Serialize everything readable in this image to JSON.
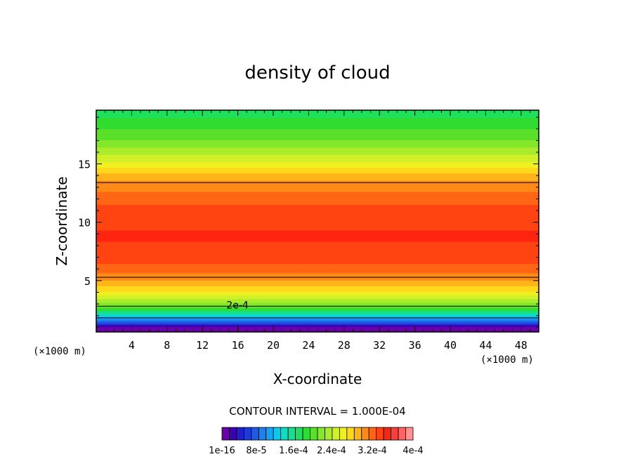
{
  "chart_data": {
    "type": "heatmap",
    "title": "density of cloud",
    "xlabel": "X-coordinate",
    "ylabel": "Z-coordinate",
    "x_unit": "(×1000 m)",
    "y_unit": "(×1000 m)",
    "xlim": [
      0,
      50
    ],
    "ylim": [
      0.6,
      19.6
    ],
    "x_ticks": [
      4,
      8,
      12,
      16,
      20,
      24,
      28,
      32,
      36,
      40,
      44,
      48
    ],
    "y_ticks": [
      5,
      10,
      15
    ],
    "contour_interval_text": "CONTOUR INTERVAL = 1.000E-04",
    "contour_label": "2e-4",
    "contour_label_position": [
      15.5,
      2.9
    ],
    "contour_levels": [
      0.0001,
      0.0002,
      0.0003
    ],
    "colorbar": {
      "tick_labels": [
        "1e-16",
        "8e-5",
        "1.6e-4",
        "2.4e-4",
        "3.2e-4",
        "4e-4"
      ],
      "colors": [
        "#6a00a8",
        "#3a00b8",
        "#2020c8",
        "#1c3cd8",
        "#1f5be6",
        "#1e80f0",
        "#12a5f2",
        "#10c8e8",
        "#10dcc0",
        "#14e090",
        "#1ee05a",
        "#30dc30",
        "#5ae028",
        "#84e82a",
        "#aaec2c",
        "#d2f028",
        "#f0f020",
        "#ffd81c",
        "#ffb41a",
        "#ff8a18",
        "#ff6614",
        "#ff4412",
        "#ff2410",
        "#ff3c3c",
        "#ff6464",
        "#ff9494"
      ]
    },
    "density_profile": [
      {
        "z": 0.6,
        "value": 0.0
      },
      {
        "z": 1.0,
        "value": 1e-05
      },
      {
        "z": 1.4,
        "value": 6e-05
      },
      {
        "z": 2.0,
        "value": 0.00012
      },
      {
        "z": 2.8,
        "value": 0.0002
      },
      {
        "z": 4.0,
        "value": 0.00026
      },
      {
        "z": 5.3,
        "value": 0.0003
      },
      {
        "z": 7.0,
        "value": 0.000335
      },
      {
        "z": 9.0,
        "value": 0.00034
      },
      {
        "z": 11.0,
        "value": 0.00033
      },
      {
        "z": 12.5,
        "value": 0.00031
      },
      {
        "z": 13.4,
        "value": 0.0003
      },
      {
        "z": 15.0,
        "value": 0.00025
      },
      {
        "z": 17.0,
        "value": 0.0002
      },
      {
        "z": 19.6,
        "value": 0.00016
      }
    ]
  }
}
